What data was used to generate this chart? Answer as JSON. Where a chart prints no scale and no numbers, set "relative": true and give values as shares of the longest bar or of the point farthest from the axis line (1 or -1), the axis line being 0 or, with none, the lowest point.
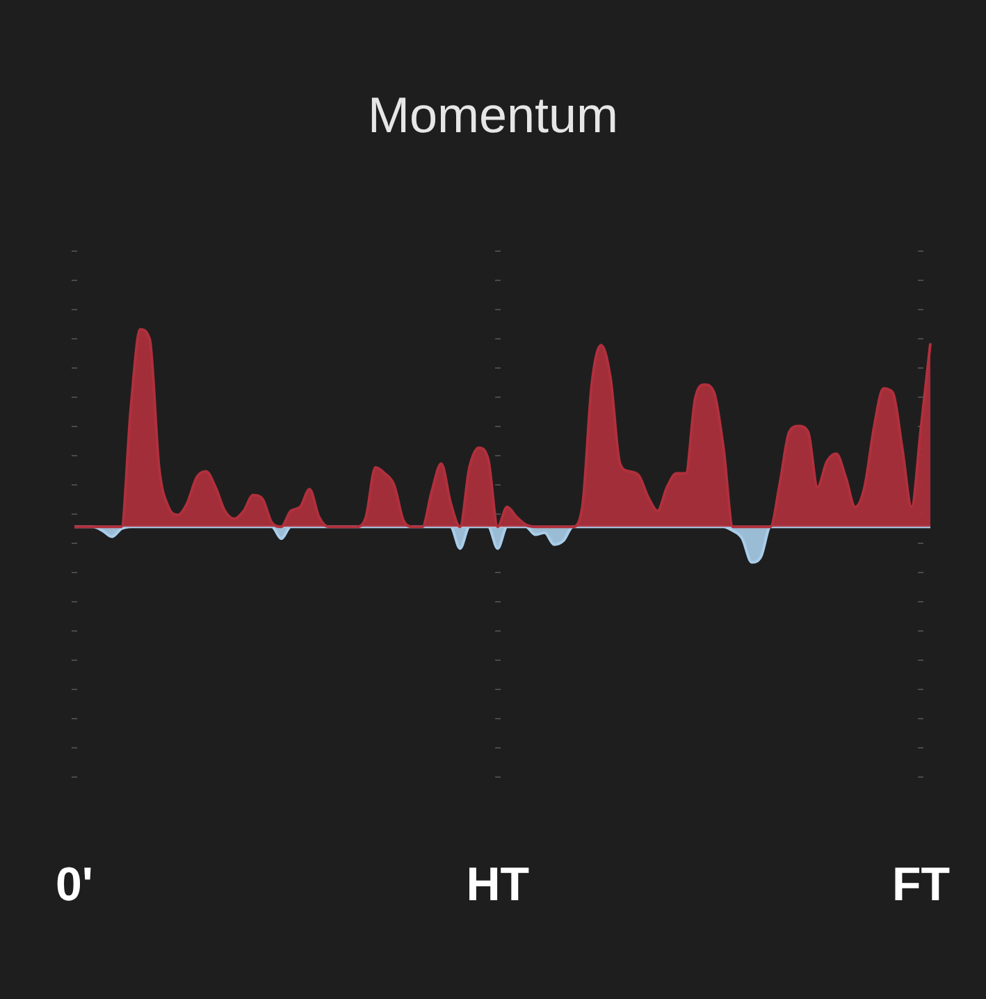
{
  "chart_data": {
    "type": "area",
    "title": "Momentum",
    "relative": true,
    "grid": "x",
    "legend": false,
    "tick_labels": "x",
    "marker": "none",
    "categories": [
      "0'",
      null,
      null,
      null,
      null,
      null,
      null,
      null,
      null,
      null,
      null,
      null,
      null,
      null,
      null,
      null,
      null,
      null,
      null,
      null,
      null,
      null,
      null,
      null,
      null,
      null,
      null,
      null,
      null,
      null,
      null,
      null,
      null,
      null,
      null,
      null,
      null,
      null,
      null,
      null,
      null,
      null,
      null,
      null,
      null,
      "HT",
      null,
      null,
      null,
      null,
      null,
      null,
      null,
      null,
      null,
      null,
      null,
      null,
      null,
      null,
      null,
      null,
      null,
      null,
      null,
      null,
      null,
      null,
      null,
      null,
      null,
      null,
      null,
      null,
      null,
      null,
      null,
      null,
      null,
      null,
      null,
      null,
      null,
      null,
      null,
      null,
      null,
      null,
      null,
      null,
      "FT",
      null
    ],
    "series": [
      {
        "color": "#b0303c",
        "values": [
          0,
          0,
          0,
          0,
          0,
          0,
          0.6,
          1,
          0.95,
          0.3,
          0.1,
          0.06,
          0.12,
          0.25,
          0.28,
          0.2,
          0.08,
          0.04,
          0.08,
          0.16,
          0.14,
          0.02,
          0,
          0.08,
          0.1,
          0.19,
          0.05,
          0,
          0,
          0,
          0,
          0.05,
          0.3,
          0.27,
          0.21,
          0.03,
          0,
          0,
          0.18,
          0.32,
          0.12,
          0,
          0.3,
          0.4,
          0.34,
          0,
          0.1,
          0.05,
          0.01,
          0,
          0,
          0,
          0,
          0,
          0.1,
          0.72,
          0.92,
          0.75,
          0.32,
          0.28,
          0.26,
          0.15,
          0.08,
          0.2,
          0.27,
          0.27,
          0.65,
          0.72,
          0.68,
          0.4,
          0,
          0,
          0,
          0,
          0,
          0.22,
          0.48,
          0.51,
          0.48,
          0.2,
          0.33,
          0.37,
          0.25,
          0.1,
          0.2,
          0.5,
          0.7,
          0.68,
          0.4,
          0.1,
          0.5,
          0.93
        ]
      },
      {
        "color": "#a9cde9",
        "values": [
          0,
          0,
          0,
          -0.02,
          -0.05,
          -0.01,
          0,
          0,
          0,
          0,
          0,
          0,
          0,
          0,
          0,
          0,
          0,
          0,
          0,
          0,
          0,
          0,
          -0.06,
          0,
          0,
          0,
          0,
          0,
          0,
          0,
          0,
          0,
          0,
          0,
          0,
          0,
          0,
          0,
          0,
          0,
          0,
          -0.11,
          0,
          0,
          0,
          -0.11,
          0,
          0,
          0,
          -0.04,
          -0.03,
          -0.09,
          -0.07,
          0,
          0,
          0,
          0,
          0,
          0,
          0,
          0,
          0,
          0,
          0,
          0,
          0,
          0,
          0,
          0,
          0,
          -0.02,
          -0.06,
          -0.18,
          -0.15,
          0,
          0,
          0,
          0,
          0,
          0,
          0,
          0,
          0,
          0,
          0,
          0,
          0,
          0,
          0,
          0,
          0,
          0
        ]
      }
    ]
  }
}
